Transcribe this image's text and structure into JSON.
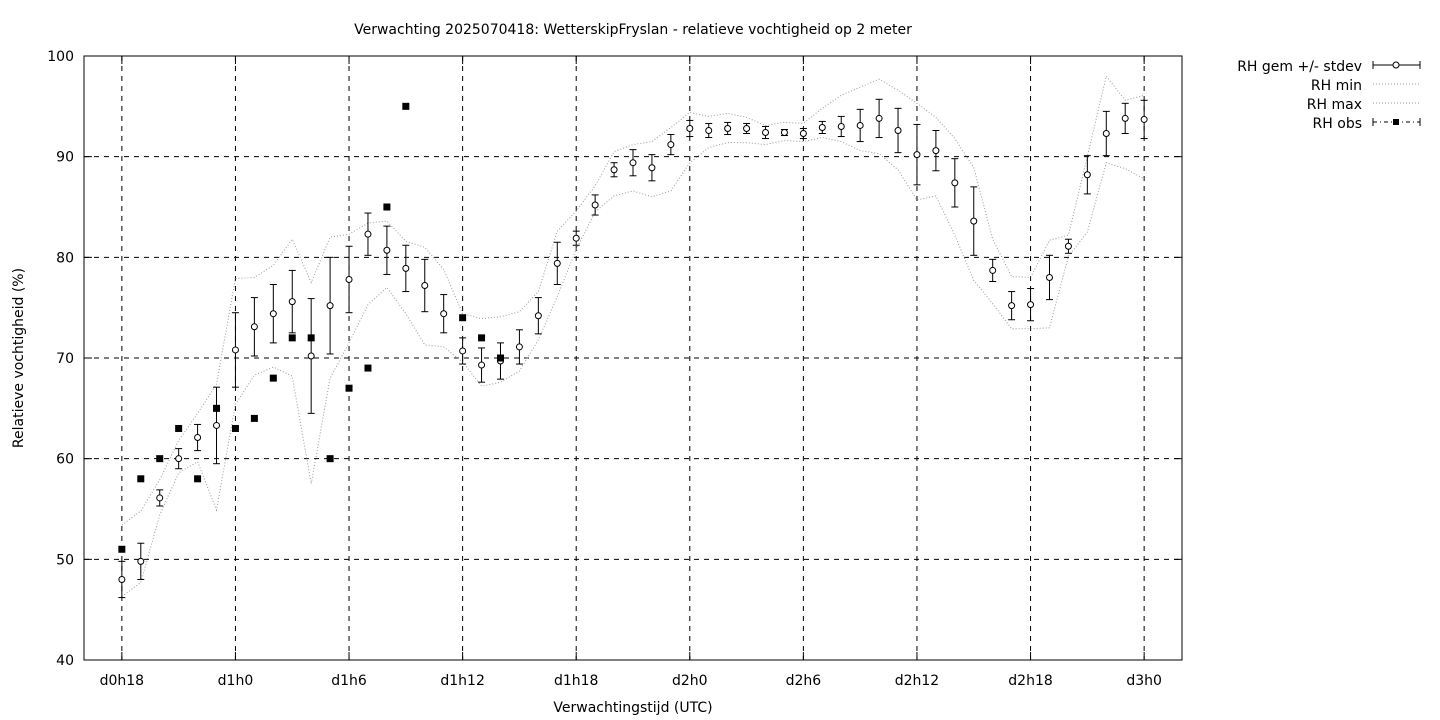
{
  "chart_data": {
    "type": "line",
    "title": "Verwachting 2025070418: WetterskipFryslan - relatieve vochtigheid op 2 meter",
    "xlabel": "Verwachtingstijd (UTC)",
    "ylabel": "Relatieve vochtigheid (%)",
    "x_unit": "hours since d0h0",
    "xlim": [
      16,
      74
    ],
    "ylim": [
      40,
      100
    ],
    "y_ticks": [
      40,
      50,
      60,
      70,
      80,
      90,
      100
    ],
    "x_ticks": [
      {
        "x": 18,
        "label": "d0h18"
      },
      {
        "x": 24,
        "label": "d1h0"
      },
      {
        "x": 30,
        "label": "d1h6"
      },
      {
        "x": 36,
        "label": "d1h12"
      },
      {
        "x": 42,
        "label": "d1h18"
      },
      {
        "x": 48,
        "label": "d2h0"
      },
      {
        "x": 54,
        "label": "d2h6"
      },
      {
        "x": 60,
        "label": "d2h12"
      },
      {
        "x": 66,
        "label": "d2h18"
      },
      {
        "x": 72,
        "label": "d3h0"
      }
    ],
    "grid": true,
    "legend_position": "outside-top-right",
    "legend": [
      "RH gem +/- stdev",
      "RH min",
      "RH max",
      "RH obs"
    ],
    "mean_series": {
      "name": "RH gem +/- stdev",
      "x": [
        18,
        19,
        20,
        21,
        22,
        23,
        24,
        25,
        26,
        27,
        28,
        29,
        30,
        31,
        32,
        33,
        34,
        35,
        36,
        37,
        38,
        39,
        40,
        41,
        42,
        43,
        44,
        45,
        46,
        47,
        48,
        49,
        50,
        51,
        52,
        53,
        54,
        55,
        56,
        57,
        58,
        59,
        60,
        61,
        62,
        63,
        64,
        65,
        66,
        67,
        68,
        69,
        70,
        71,
        72
      ],
      "y": [
        48.0,
        49.8,
        56.1,
        60.0,
        62.1,
        63.3,
        70.8,
        73.1,
        74.4,
        75.6,
        70.2,
        75.2,
        77.8,
        82.3,
        80.7,
        78.9,
        77.2,
        74.4,
        70.7,
        69.3,
        69.7,
        71.1,
        74.2,
        79.4,
        81.9,
        85.2,
        88.7,
        89.4,
        88.9,
        91.2,
        92.8,
        92.6,
        92.8,
        92.8,
        92.4,
        92.4,
        92.3,
        92.9,
        93.0,
        93.1,
        93.8,
        92.6,
        90.2,
        90.6,
        87.4,
        83.6,
        78.7,
        75.2,
        75.3,
        78.0,
        81.1,
        88.2,
        92.3,
        93.8,
        93.7
      ],
      "stdev": [
        1.8,
        1.8,
        0.8,
        1.0,
        1.3,
        3.8,
        3.7,
        2.9,
        2.9,
        3.1,
        5.7,
        4.8,
        3.3,
        2.1,
        2.4,
        2.3,
        2.6,
        1.9,
        1.3,
        1.7,
        1.8,
        1.7,
        1.8,
        2.1,
        0.7,
        1.0,
        0.7,
        1.3,
        1.3,
        1.0,
        0.8,
        0.7,
        0.6,
        0.5,
        0.6,
        0.3,
        0.5,
        0.6,
        1.0,
        1.6,
        1.9,
        2.2,
        3.0,
        2.0,
        2.4,
        3.4,
        1.1,
        1.4,
        1.6,
        2.2,
        0.7,
        1.9,
        2.2,
        1.5,
        1.9
      ]
    },
    "min_series": {
      "name": "RH min",
      "x": [
        18,
        19,
        20,
        21,
        22,
        23,
        24,
        25,
        26,
        27,
        28,
        29,
        30,
        31,
        32,
        33,
        34,
        35,
        36,
        37,
        38,
        39,
        40,
        41,
        42,
        43,
        44,
        45,
        46,
        47,
        48,
        49,
        50,
        51,
        52,
        53,
        54,
        55,
        56,
        57,
        58,
        59,
        60,
        61,
        62,
        63,
        64,
        65,
        66,
        67,
        68,
        69,
        70,
        71,
        72
      ],
      "y": [
        46.3,
        47.7,
        54.4,
        58.6,
        59.7,
        54.9,
        65.4,
        68.3,
        69.1,
        68.2,
        57.5,
        68.0,
        71.5,
        75.3,
        77.0,
        74.4,
        71.3,
        71.1,
        69.6,
        67.2,
        67.6,
        68.7,
        71.8,
        76.1,
        80.8,
        84.5,
        86.1,
        86.6,
        86.0,
        86.6,
        89.4,
        90.9,
        91.4,
        91.4,
        91.2,
        91.6,
        91.5,
        91.9,
        91.5,
        90.6,
        90.3,
        88.7,
        85.7,
        86.1,
        82.2,
        77.7,
        75.4,
        72.9,
        72.9,
        73.0,
        80.1,
        82.5,
        89.4,
        88.8,
        87.8
      ]
    },
    "max_series": {
      "name": "RH max",
      "x": [
        18,
        19,
        20,
        21,
        22,
        23,
        24,
        25,
        26,
        27,
        28,
        29,
        30,
        31,
        32,
        33,
        34,
        35,
        36,
        37,
        38,
        39,
        40,
        41,
        42,
        43,
        44,
        45,
        46,
        47,
        48,
        49,
        50,
        51,
        52,
        53,
        54,
        55,
        56,
        57,
        58,
        59,
        60,
        61,
        62,
        63,
        64,
        65,
        66,
        67,
        68,
        69,
        70,
        71,
        72
      ],
      "y": [
        53.4,
        54.8,
        57.9,
        61.8,
        64.5,
        67.4,
        77.9,
        78.0,
        79.2,
        81.8,
        77.5,
        82.0,
        82.3,
        83.4,
        83.6,
        81.6,
        81.0,
        78.8,
        74.4,
        73.9,
        74.1,
        74.6,
        76.6,
        82.6,
        84.6,
        87.1,
        90.5,
        91.2,
        91.5,
        92.9,
        94.4,
        94.0,
        94.3,
        93.9,
        93.1,
        93.4,
        93.3,
        94.8,
        96.1,
        96.9,
        97.7,
        96.6,
        95.3,
        93.9,
        91.8,
        88.9,
        81.8,
        78.1,
        78.0,
        81.7,
        82.2,
        90.0,
        98.0,
        95.6,
        96.1
      ]
    },
    "obs_series": {
      "name": "RH obs",
      "x": [
        18,
        19,
        20,
        21,
        22,
        23,
        24,
        25,
        26,
        27,
        28,
        29,
        30,
        31,
        32,
        33,
        36,
        37,
        38
      ],
      "y": [
        51,
        58,
        60,
        63,
        58,
        65,
        63,
        64,
        68,
        72,
        72,
        60,
        67,
        69,
        85,
        95,
        74,
        72,
        70
      ]
    }
  }
}
